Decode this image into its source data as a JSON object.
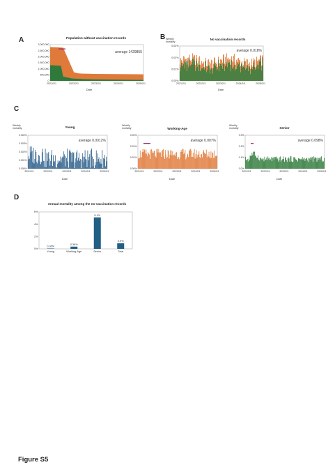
{
  "figure_label": "Figure S5",
  "panels": {
    "A": "A",
    "B": "B",
    "C": "C",
    "D": "D"
  },
  "chart_data": [
    {
      "id": "A",
      "type": "area",
      "title": "Population without vaccination records",
      "xlabel": "Date",
      "ylabel": "",
      "ylim": [
        0,
        3000000
      ],
      "yticks": [
        "3,000,000",
        "2,500,000",
        "2,000,000",
        "1,500,000",
        "1,000,000",
        "500,000",
        "0"
      ],
      "xticks": [
        "2021/2/1",
        "2022/2/1",
        "2023/2/1",
        "2024/2/1",
        "2025/2/1"
      ],
      "annotation": "average 1429855",
      "marker_color": "#9a2a6a",
      "series": [
        {
          "name": "",
          "color": "#e07a3a",
          "x": [
            2021.0,
            2021.6,
            2022.0,
            2022.1,
            2022.3,
            2022.5,
            2023.0,
            2024.0,
            2025.0,
            2025.3
          ],
          "values": [
            2800000,
            2750000,
            1100000,
            700000,
            620000,
            600000,
            580000,
            560000,
            550000,
            540000
          ]
        },
        {
          "name": "",
          "color": "#2f7a3a",
          "x": [
            2021.0,
            2021.5,
            2021.6,
            2022.0,
            2022.5,
            2023.0,
            2024.0,
            2025.0,
            2025.3
          ],
          "values": [
            1300000,
            1250000,
            350000,
            200000,
            150000,
            120000,
            100000,
            90000,
            80000
          ]
        }
      ]
    },
    {
      "id": "B",
      "type": "bar",
      "title": "No vaccination records",
      "xlabel": "Date",
      "ylabel": "Weekly\nmortality",
      "ylim": [
        0,
        0.03
      ],
      "yticks": [
        "0.03%",
        "0.02%",
        "0.01%",
        "0.00%"
      ],
      "xticks": [
        "2021/2/1",
        "2022/2/1",
        "2023/2/1",
        "2024/2/1",
        "2025/2/1"
      ],
      "annotation": "average 0.018%",
      "color_back": "#e07a3a",
      "color_front": "#2f7a3a",
      "base": 0.017,
      "amp": 0.005,
      "bars": 120
    },
    {
      "id": "C1",
      "type": "bar",
      "title": "Young",
      "xlabel": "Date",
      "ylabel": "Weekly\nmortality",
      "ylim": [
        0,
        0.004
      ],
      "yticks": [
        "0.004%",
        "0.003%",
        "0.002%",
        "0.001%",
        "0.000%"
      ],
      "xticks": [
        "2021/2/1",
        "2022/2/1",
        "2023/2/1",
        "2024/2/1",
        "2025/2/1"
      ],
      "annotation": "average 0.0012%",
      "color": "#2c5f8a",
      "base": 0.0012,
      "amp": 0.0012,
      "bars": 120
    },
    {
      "id": "C2",
      "type": "bar",
      "title": "Working-Age",
      "xlabel": "Date",
      "ylabel": "Weekly\nmortality",
      "ylim": [
        0,
        0.025
      ],
      "yticks": [
        "0.02%",
        "0.01%",
        "0.01%",
        "0.00%"
      ],
      "xticks": [
        "2021/2/1",
        "2022/2/1",
        "2023/2/1",
        "2024/2/1",
        "2025/2/1"
      ],
      "annotation": "average 0.007%",
      "color": "#e07a3a",
      "marker_color": "#9a2a6a",
      "base": 0.011,
      "amp": 0.004,
      "bars": 120
    },
    {
      "id": "C3",
      "type": "bar",
      "title": "Senior",
      "xlabel": "Date",
      "ylabel": "Weekly\nmortality",
      "ylim": [
        0,
        0.35
      ],
      "yticks": [
        "0.3%",
        "0.2%",
        "0.1%",
        "0.0%"
      ],
      "xticks": [
        "2021/2/1",
        "2022/2/1",
        "2023/2/1",
        "2024/2/1",
        "2025/2/1"
      ],
      "annotation": "average 0.098%",
      "color": "#2f7a3a",
      "marker_color": "#cc2233",
      "base": 0.1,
      "amp": 0.03,
      "bars": 120
    },
    {
      "id": "D",
      "type": "bar",
      "title": "Annual mortality among the no-vaccination records",
      "xlabel": "",
      "ylabel": "",
      "ylim": [
        0,
        6
      ],
      "yticks": [
        "6%",
        "4%",
        "2%",
        "0%"
      ],
      "categories": [
        "Young",
        "Working-Age",
        "Senior",
        "Total"
      ],
      "values": [
        0.06,
        0.36,
        5.1,
        0.9
      ],
      "labels": [
        "0.06%",
        "0.36%",
        "5.1%",
        "0.9%"
      ],
      "color": "#225f85"
    }
  ]
}
